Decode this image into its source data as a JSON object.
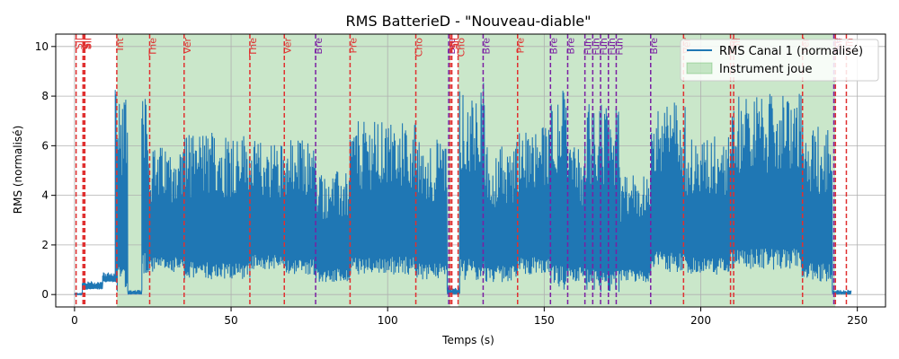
{
  "chart_data": {
    "type": "line",
    "title": "RMS BatterieD - \"Nouveau-diable\"",
    "xlabel": "Temps (s)",
    "ylabel": "RMS (normalisé)",
    "xlim": [
      -6,
      259
    ],
    "ylim": [
      -0.5,
      10.5
    ],
    "xticks": [
      0,
      50,
      100,
      150,
      200,
      250
    ],
    "yticks": [
      0,
      2,
      4,
      6,
      8,
      10
    ],
    "grid": true,
    "legend_position": "top-right",
    "series": [
      {
        "name": "RMS Canal 1 (normalisé)",
        "color": "#1f77b4",
        "segments": [
          {
            "x": [
              0,
              2.5
            ],
            "low": 0.0,
            "high": 0.05
          },
          {
            "x": [
              2.5,
              9
            ],
            "low": 0.2,
            "high": 0.55
          },
          {
            "x": [
              9,
              13
            ],
            "low": 0.5,
            "high": 0.9
          },
          {
            "x": [
              13,
              17
            ],
            "low": 0.1,
            "high": 8.5
          },
          {
            "x": [
              17,
              21.5
            ],
            "low": 0.0,
            "high": 0.2
          },
          {
            "x": [
              21.5,
              23.5
            ],
            "low": 0.8,
            "high": 9.2
          },
          {
            "x": [
              23.5,
              35
            ],
            "low": 0.9,
            "high": 6.0
          },
          {
            "x": [
              35,
              56
            ],
            "low": 0.6,
            "high": 6.6
          },
          {
            "x": [
              56,
              67
            ],
            "low": 1.0,
            "high": 6.2
          },
          {
            "x": [
              67,
              77
            ],
            "low": 0.8,
            "high": 6.3
          },
          {
            "x": [
              77,
              88
            ],
            "low": 0.5,
            "high": 5.0
          },
          {
            "x": [
              88,
              109
            ],
            "low": 0.8,
            "high": 7.0
          },
          {
            "x": [
              109,
              119
            ],
            "low": 0.6,
            "high": 6.3
          },
          {
            "x": [
              119,
              123
            ],
            "low": 0.0,
            "high": 0.3
          },
          {
            "x": [
              123,
              131
            ],
            "low": 0.5,
            "high": 8.6
          },
          {
            "x": [
              131,
              141
            ],
            "low": 0.5,
            "high": 6.0
          },
          {
            "x": [
              141,
              152
            ],
            "low": 0.8,
            "high": 6.8
          },
          {
            "x": [
              152,
              157
            ],
            "low": 0.2,
            "high": 8.3
          },
          {
            "x": [
              157,
              163
            ],
            "low": 0.5,
            "high": 6.0
          },
          {
            "x": [
              163,
              174
            ],
            "low": 0.1,
            "high": 7.8
          },
          {
            "x": [
              174,
              184
            ],
            "low": 0.5,
            "high": 4.8
          },
          {
            "x": [
              184,
              195
            ],
            "low": 0.9,
            "high": 7.8
          },
          {
            "x": [
              195,
              209
            ],
            "low": 0.8,
            "high": 6.5
          },
          {
            "x": [
              209,
              232
            ],
            "low": 1.0,
            "high": 8.1
          },
          {
            "x": [
              232,
              242
            ],
            "low": 0.5,
            "high": 6.9
          },
          {
            "x": [
              242,
              248
            ],
            "low": 0.0,
            "high": 0.2
          }
        ]
      }
    ],
    "shaded_regions": {
      "name": "Instrument joue",
      "color": "#2ca02c",
      "ranges": [
        [
          13.5,
          120
        ],
        [
          122.5,
          243
        ]
      ]
    },
    "markers": [
      {
        "x": 0.5,
        "label": "Sil",
        "color": "#e03030"
      },
      {
        "x": 2.7,
        "label": "Sil",
        "color": "#e03030"
      },
      {
        "x": 3.0,
        "label": "Sil",
        "color": "#e03030"
      },
      {
        "x": 3.3,
        "label": "Sil",
        "color": "#e03030"
      },
      {
        "x": 13.5,
        "label": "Int",
        "color": "#e03030"
      },
      {
        "x": 24.0,
        "label": "The",
        "color": "#e03030"
      },
      {
        "x": 35.0,
        "label": "Ver",
        "color": "#e03030"
      },
      {
        "x": 56.0,
        "label": "The",
        "color": "#e03030"
      },
      {
        "x": 67.0,
        "label": "Ver",
        "color": "#e03030"
      },
      {
        "x": 77.0,
        "label": "Bre",
        "color": "#7b1fa2"
      },
      {
        "x": 88.0,
        "label": "Pre",
        "color": "#e03030"
      },
      {
        "x": 109.0,
        "label": "Cho",
        "color": "#e03030"
      },
      {
        "x": 119.5,
        "label": "Bre",
        "color": "#7b1fa2"
      },
      {
        "x": 120.0,
        "label": "Sil",
        "color": "#e03030"
      },
      {
        "x": 120.5,
        "label": "Sil",
        "color": "#e03030"
      },
      {
        "x": 122.5,
        "label": "Cho",
        "color": "#e03030"
      },
      {
        "x": 130.5,
        "label": "Bre",
        "color": "#7b1fa2"
      },
      {
        "x": 141.5,
        "label": "Pre",
        "color": "#e03030"
      },
      {
        "x": 152.0,
        "label": "Bre",
        "color": "#7b1fa2"
      },
      {
        "x": 157.5,
        "label": "Bre",
        "color": "#7b1fa2"
      },
      {
        "x": 163.0,
        "label": "Fun",
        "color": "#7b1fa2"
      },
      {
        "x": 165.5,
        "label": "Fun",
        "color": "#7b1fa2"
      },
      {
        "x": 168.0,
        "label": "Fun",
        "color": "#7b1fa2"
      },
      {
        "x": 170.5,
        "label": "Fun",
        "color": "#7b1fa2"
      },
      {
        "x": 173.0,
        "label": "Fun",
        "color": "#7b1fa2"
      },
      {
        "x": 184.0,
        "label": "Bre",
        "color": "#7b1fa2"
      },
      {
        "x": 194.5,
        "label": "Ver",
        "color": "#e03030"
      },
      {
        "x": 209.5,
        "label": "The",
        "color": "#e03030"
      },
      {
        "x": 210.5,
        "label": "Sil",
        "color": "#e03030"
      },
      {
        "x": 232.5,
        "label": "Ver",
        "color": "#e03030"
      },
      {
        "x": 242.5,
        "label": "Bre",
        "color": "#7b1fa2"
      },
      {
        "x": 243.0,
        "label": "Sil",
        "color": "#e03030"
      },
      {
        "x": 246.5,
        "label": "Fin",
        "color": "#e03030"
      }
    ]
  }
}
